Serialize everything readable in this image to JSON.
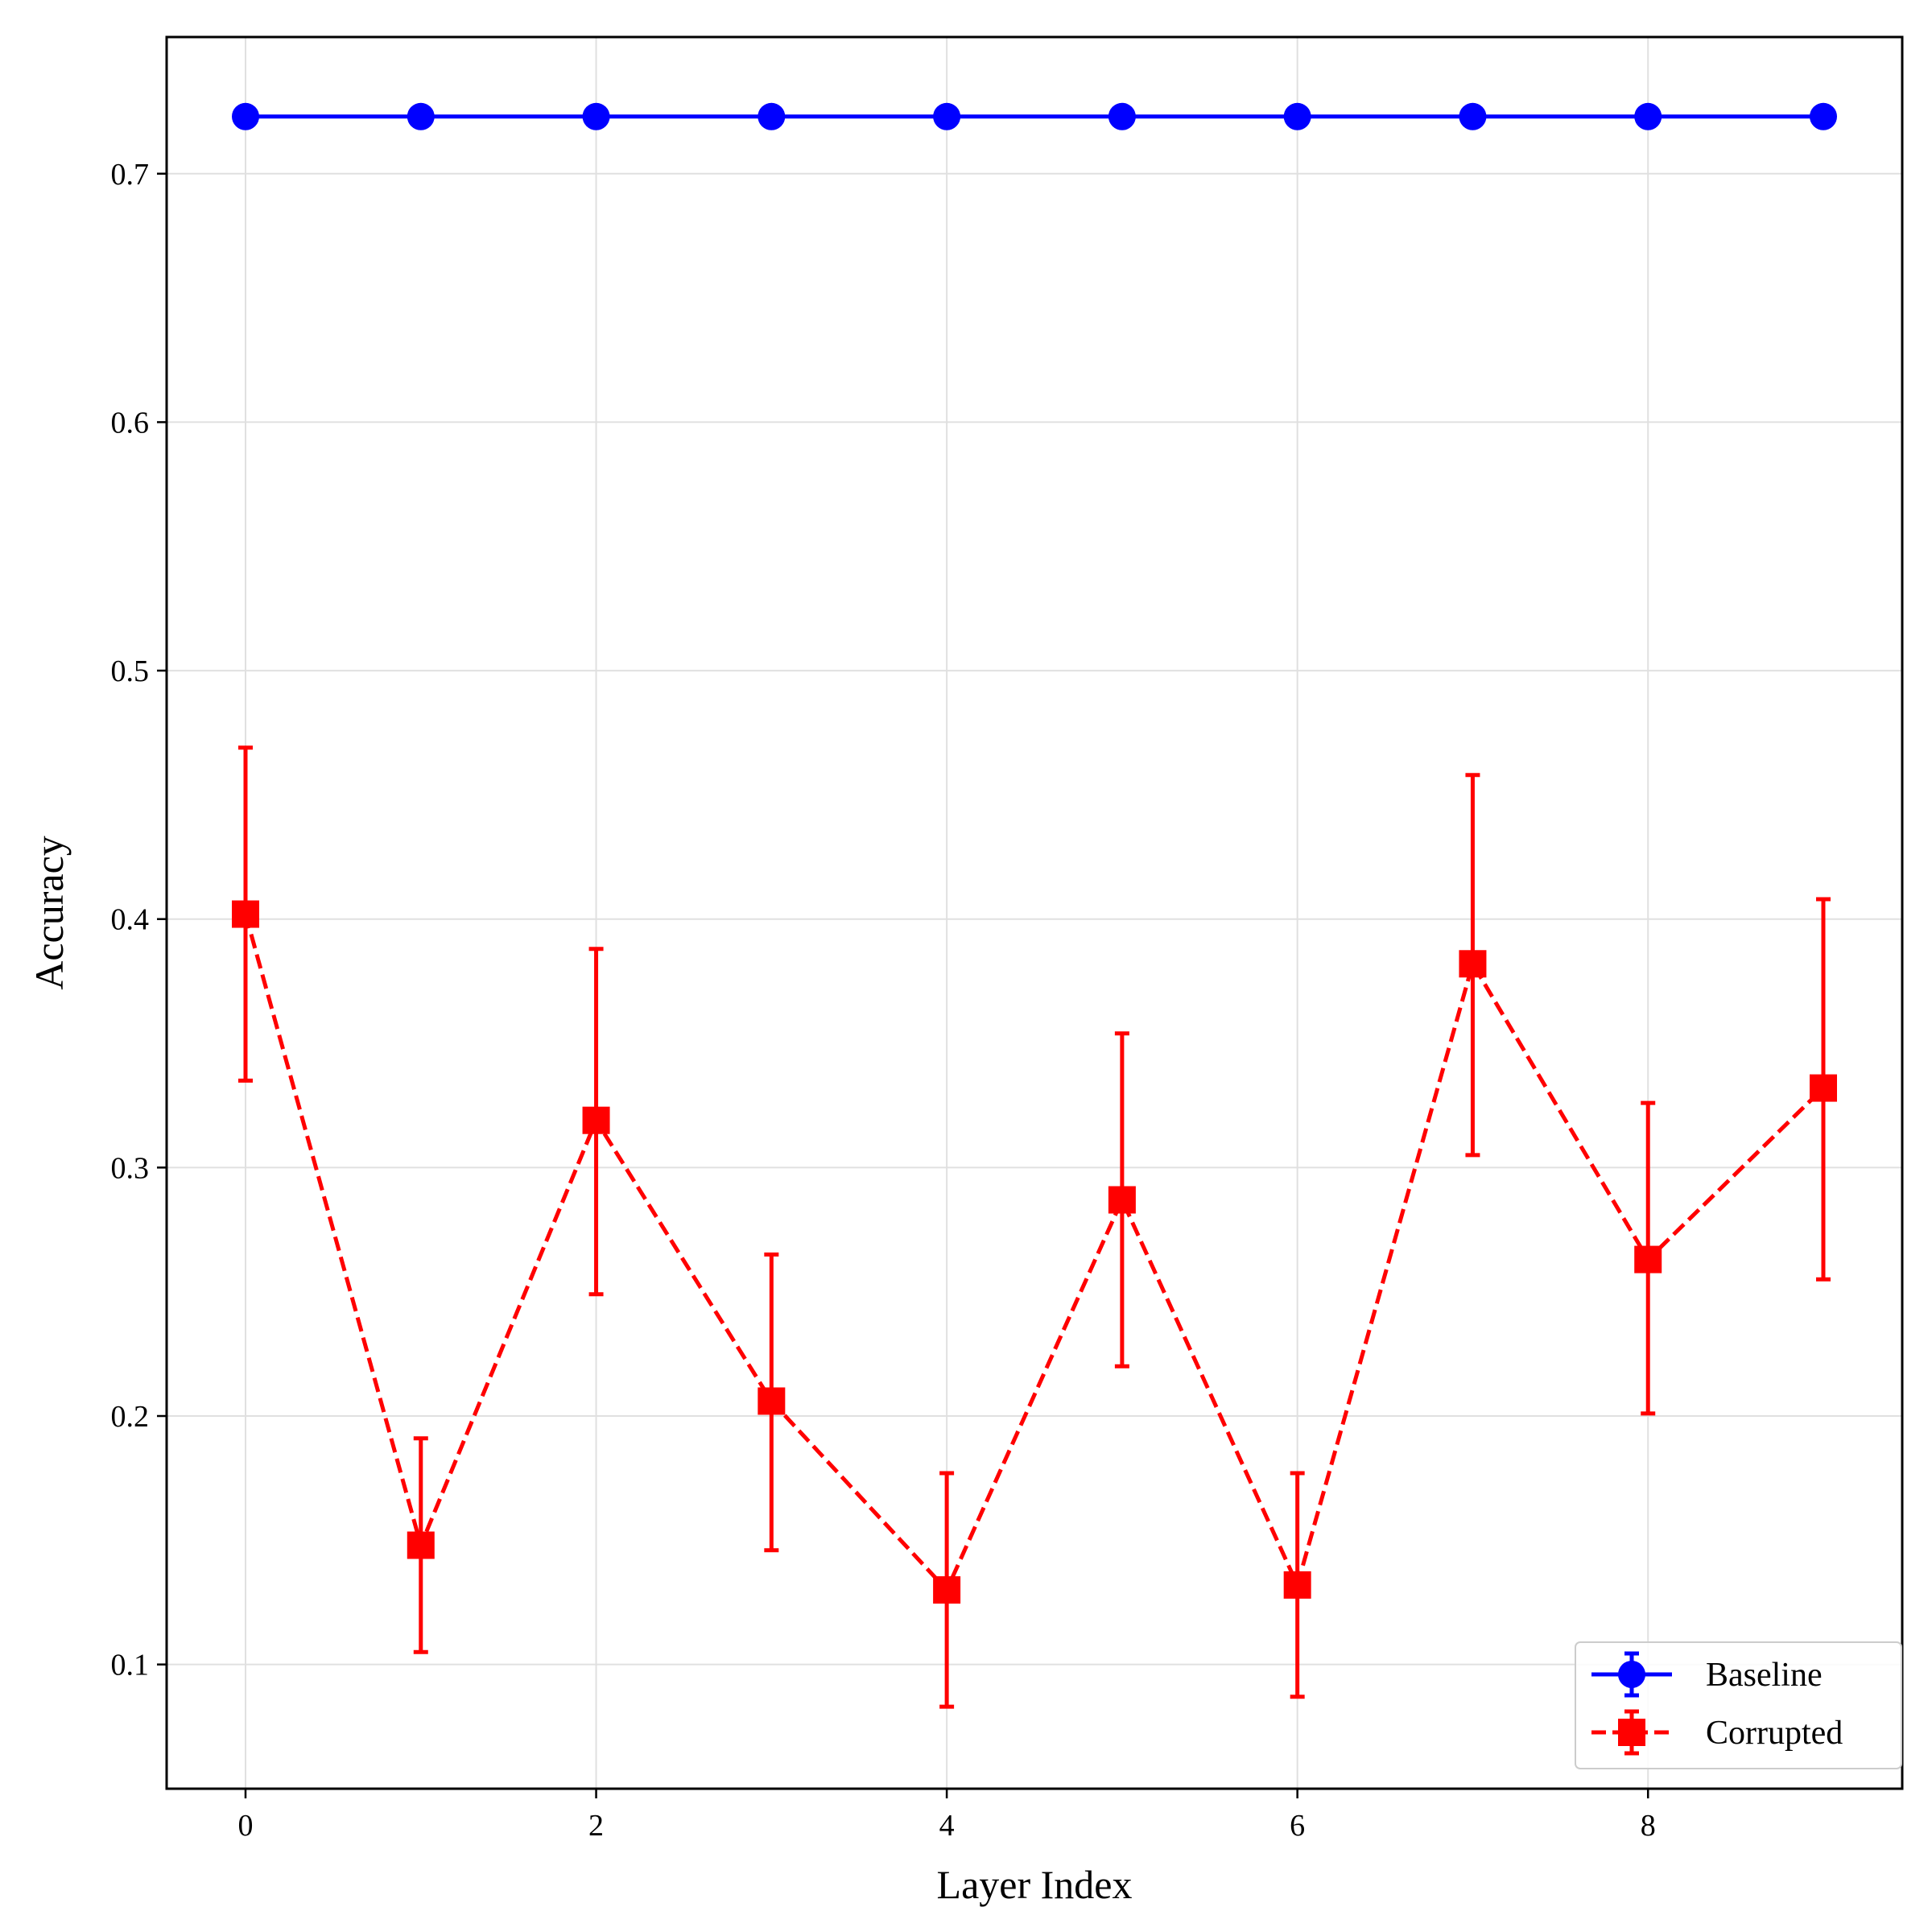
{
  "chart_data": {
    "type": "line",
    "title": "",
    "xlabel": "Layer Index",
    "ylabel": "Accuracy",
    "xlim": [
      -0.45,
      9.45
    ],
    "ylim": [
      0.05,
      0.755
    ],
    "xticks": [
      0,
      2,
      4,
      6,
      8
    ],
    "xtick_labels": [
      "0",
      "2",
      "4",
      "6",
      "8"
    ],
    "yticks": [
      0.1,
      0.2,
      0.3,
      0.4,
      0.5,
      0.6,
      0.7
    ],
    "ytick_labels": [
      "0.1",
      "0.2",
      "0.3",
      "0.4",
      "0.5",
      "0.6",
      "0.7"
    ],
    "grid": true,
    "legend_position": "lower-right",
    "x": [
      0,
      1,
      2,
      3,
      4,
      5,
      6,
      7,
      8,
      9
    ],
    "series": [
      {
        "name": "Baseline",
        "color": "#0000ff",
        "linestyle": "solid",
        "marker": "circle",
        "values": [
          0.723,
          0.723,
          0.723,
          0.723,
          0.723,
          0.723,
          0.723,
          0.723,
          0.723,
          0.723
        ],
        "err_lower": [
          0,
          0,
          0,
          0,
          0,
          0,
          0,
          0,
          0,
          0
        ],
        "err_upper": [
          0,
          0,
          0,
          0,
          0,
          0,
          0,
          0,
          0,
          0
        ]
      },
      {
        "name": "Corrupted",
        "color": "#ff0000",
        "linestyle": "dashed",
        "marker": "square",
        "values": [
          0.402,
          0.148,
          0.319,
          0.206,
          0.13,
          0.287,
          0.132,
          0.382,
          0.263,
          0.332
        ],
        "err_lower": [
          0.335,
          0.105,
          0.249,
          0.146,
          0.083,
          0.22,
          0.087,
          0.305,
          0.201,
          0.255
        ],
        "err_upper": [
          0.469,
          0.191,
          0.388,
          0.265,
          0.177,
          0.354,
          0.177,
          0.458,
          0.326,
          0.408
        ]
      }
    ]
  }
}
